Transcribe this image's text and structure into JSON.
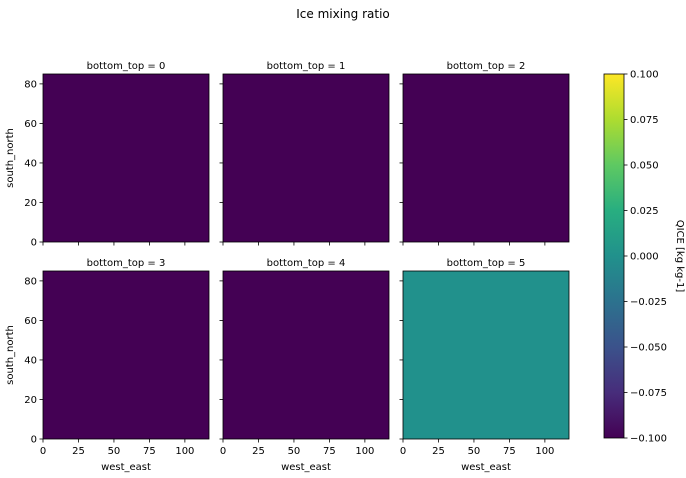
{
  "figure": {
    "title": "Ice mixing ratio"
  },
  "chart_data": {
    "type": "heatmap",
    "title": "Ice mixing ratio",
    "facet_variable": "bottom_top",
    "xlabel": "west_east",
    "ylabel": "south_north",
    "xlim": [
      0,
      117
    ],
    "ylim": [
      0,
      85
    ],
    "xticks": [
      0,
      25,
      50,
      75,
      100
    ],
    "yticks": [
      0,
      20,
      40,
      60,
      80
    ],
    "panels": [
      {
        "title": "bottom_top = 0",
        "value": -0.1,
        "color": "#440154"
      },
      {
        "title": "bottom_top = 1",
        "value": -0.1,
        "color": "#440154"
      },
      {
        "title": "bottom_top = 2",
        "value": -0.1,
        "color": "#440154"
      },
      {
        "title": "bottom_top = 3",
        "value": -0.1,
        "color": "#440154"
      },
      {
        "title": "bottom_top = 4",
        "value": -0.1,
        "color": "#440154"
      },
      {
        "title": "bottom_top = 5",
        "value": 0.0,
        "color": "#21918c"
      }
    ],
    "colorbar": {
      "label": "QICE [kg kg-1]",
      "colormap": "viridis",
      "range": [
        -0.1,
        0.1
      ],
      "ticks": [
        "0.100",
        "0.075",
        "0.050",
        "0.025",
        "0.000",
        "−0.025",
        "−0.050",
        "−0.075",
        "−0.100"
      ],
      "tick_values": [
        0.1,
        0.075,
        0.05,
        0.025,
        0.0,
        -0.025,
        -0.05,
        -0.075,
        -0.1
      ]
    }
  }
}
